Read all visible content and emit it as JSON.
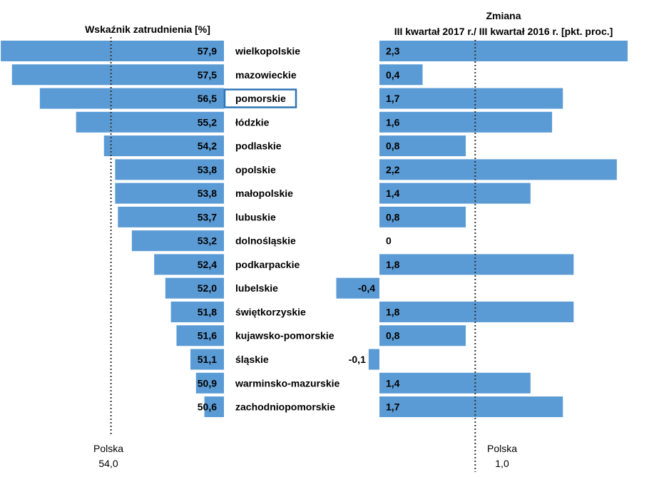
{
  "colors": {
    "bar": "#5b9bd5",
    "highlight_border": "#2e75b6",
    "text": "#000000",
    "ref_line": "#333333"
  },
  "chart_data": [
    {
      "type": "bar",
      "orientation": "horizontal",
      "title": "Wskaźnik zatrudnienia [%]",
      "categories": [
        "wielkopolskie",
        "mazowieckie",
        "pomorskie",
        "łódzkie",
        "podlaskie",
        "opolskie",
        "małopolskie",
        "lubuskie",
        "dolnośląskie",
        "podkarpackie",
        "lubelskie",
        "świętkorzyskie",
        "kujawsko-pomorskie",
        "śląskie",
        "warminsko-mazurskie",
        "zachodniopomorskie"
      ],
      "values": [
        57.9,
        57.5,
        56.5,
        55.2,
        54.2,
        53.8,
        53.8,
        53.7,
        53.2,
        52.4,
        52.0,
        51.8,
        51.6,
        51.1,
        50.9,
        50.6
      ],
      "value_labels": [
        "57,9",
        "57,5",
        "56,5",
        "55,2",
        "54,2",
        "53,8",
        "53,8",
        "53,7",
        "53,2",
        "52,4",
        "52,0",
        "51,8",
        "51,6",
        "51,1",
        "50,9",
        "50,6"
      ],
      "xlim": [
        50.0,
        58.5
      ],
      "highlighted_category": "pomorskie",
      "reference": {
        "value": 54.0,
        "name": "Polska",
        "label": "54,0"
      }
    },
    {
      "type": "bar",
      "orientation": "horizontal",
      "title_line1": "Zmiana",
      "title_line2": "III kwartał 2017 r./ III kwartał 2016 r. [pkt. proc.]",
      "categories": [
        "wielkopolskie",
        "mazowieckie",
        "pomorskie",
        "łódzkie",
        "podlaskie",
        "opolskie",
        "małopolskie",
        "lubuskie",
        "dolnośląskie",
        "podkarpackie",
        "lubelskie",
        "świętkorzyskie",
        "kujawsko-pomorskie",
        "śląskie",
        "warminsko-mazurskie",
        "zachodniopomorskie"
      ],
      "values": [
        2.3,
        0.4,
        1.7,
        1.6,
        0.8,
        2.2,
        1.4,
        0.8,
        0,
        1.8,
        -0.4,
        1.8,
        0.8,
        -0.1,
        1.4,
        1.7
      ],
      "value_labels": [
        "2,3",
        "0,4",
        "1,7",
        "1,6",
        "0,8",
        "2,2",
        "1,4",
        "0,8",
        "0",
        "1,8",
        "-0,4",
        "1,8",
        "0,8",
        "-0,1",
        "1,4",
        "1,7"
      ],
      "xlim": [
        0,
        2.3
      ],
      "reference": {
        "value": 1.0,
        "name": "Polska",
        "label": "1,0"
      }
    }
  ]
}
